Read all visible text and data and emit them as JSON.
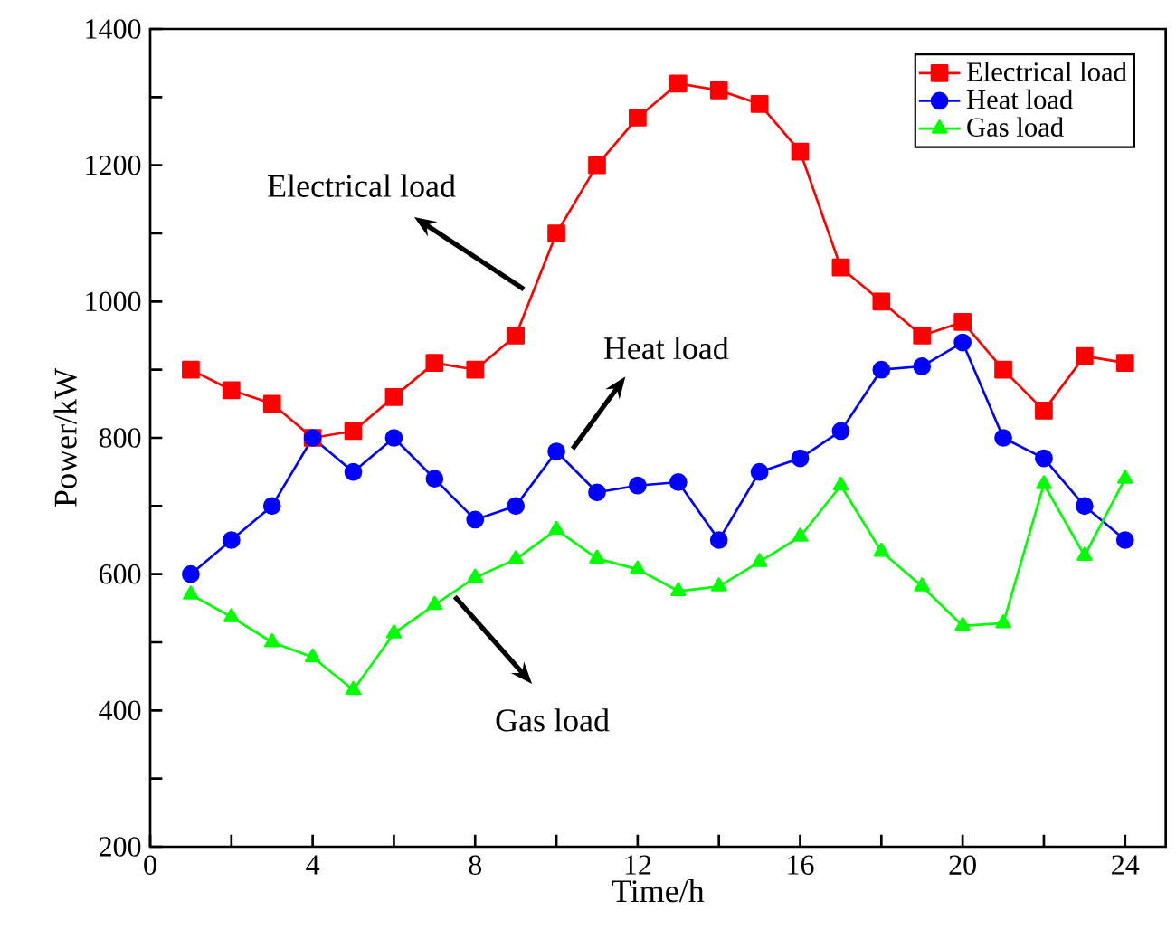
{
  "chart_data": {
    "type": "line",
    "xlabel": "Time/h",
    "ylabel": "Power/kW",
    "x": [
      1,
      2,
      3,
      4,
      5,
      6,
      7,
      8,
      9,
      10,
      11,
      12,
      13,
      14,
      15,
      16,
      17,
      18,
      19,
      20,
      21,
      22,
      23,
      24
    ],
    "xlim": [
      0,
      25
    ],
    "ylim": [
      200,
      1400
    ],
    "xticks": [
      0,
      {
        "value": 2,
        "label": null
      },
      4,
      {
        "value": 6,
        "label": null
      },
      8,
      {
        "value": 10,
        "label": null
      },
      12,
      {
        "value": 14,
        "label": null
      },
      16,
      {
        "value": 18,
        "label": null
      },
      20,
      {
        "value": 22,
        "label": null
      },
      24
    ],
    "yticks": [
      200,
      {
        "value": 300,
        "label": null
      },
      400,
      {
        "value": 500,
        "label": null
      },
      600,
      {
        "value": 700,
        "label": null
      },
      800,
      {
        "value": 900,
        "label": null
      },
      1000,
      {
        "value": 1100,
        "label": null
      },
      1200,
      {
        "value": 1300,
        "label": null
      },
      1400
    ],
    "series": [
      {
        "name": "Electrical load",
        "color": "#ff0000",
        "marker": "square",
        "values": [
          900,
          870,
          850,
          800,
          810,
          860,
          910,
          900,
          950,
          1100,
          1200,
          1270,
          1320,
          1310,
          1290,
          1220,
          1050,
          1000,
          950,
          970,
          900,
          840,
          920,
          910
        ]
      },
      {
        "name": "Heat load",
        "color": "#0000ff",
        "marker": "circle",
        "values": [
          600,
          650,
          700,
          800,
          750,
          800,
          740,
          680,
          700,
          780,
          720,
          730,
          735,
          650,
          750,
          770,
          810,
          900,
          905,
          940,
          800,
          770,
          700,
          650
        ]
      },
      {
        "name": "Gas load",
        "color": "#00ff00",
        "marker": "triangle",
        "values": [
          570,
          537,
          500,
          478,
          430,
          513,
          555,
          595,
          622,
          665,
          623,
          607,
          575,
          582,
          618,
          655,
          730,
          633,
          582,
          524,
          528,
          732,
          627,
          740
        ]
      }
    ],
    "annotations": [
      {
        "text": "Electrical load",
        "x": 9.2,
        "y": 1018
      },
      {
        "text": "Heat load",
        "x": 10.4,
        "y": 784
      },
      {
        "text": "Gas load",
        "x": 7.5,
        "y": 567
      }
    ],
    "legend": "top right",
    "grid": false
  }
}
